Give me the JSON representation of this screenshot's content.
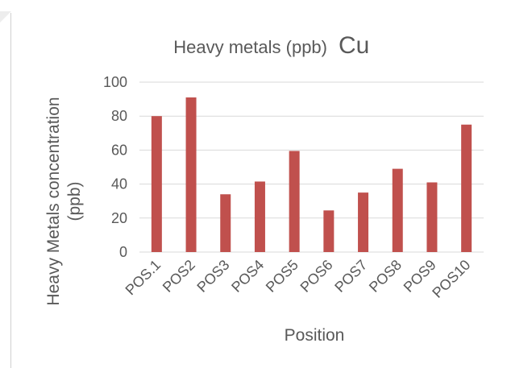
{
  "chart_data": {
    "type": "bar",
    "title": "Heavy metals (ppb)",
    "title_suffix": "Cu",
    "xlabel": "Position",
    "ylabel_line1": "Heavy Metals concentration",
    "ylabel_line2": "(ppb)",
    "categories": [
      "POS.1",
      "POS2",
      "POS3",
      "POS4",
      "POS5",
      "POS6",
      "POS7",
      "POS8",
      "POS9",
      "POS10"
    ],
    "values": [
      80,
      91,
      34,
      41.5,
      59.5,
      24.5,
      35,
      49,
      41,
      75
    ],
    "ylim": [
      0,
      100
    ],
    "yticks": [
      "0",
      "20",
      "40",
      "60",
      "80",
      "100"
    ],
    "grid": true,
    "bar_color": "#c0504d",
    "grid_color": "#d9d9d9",
    "text_color": "#595959"
  }
}
